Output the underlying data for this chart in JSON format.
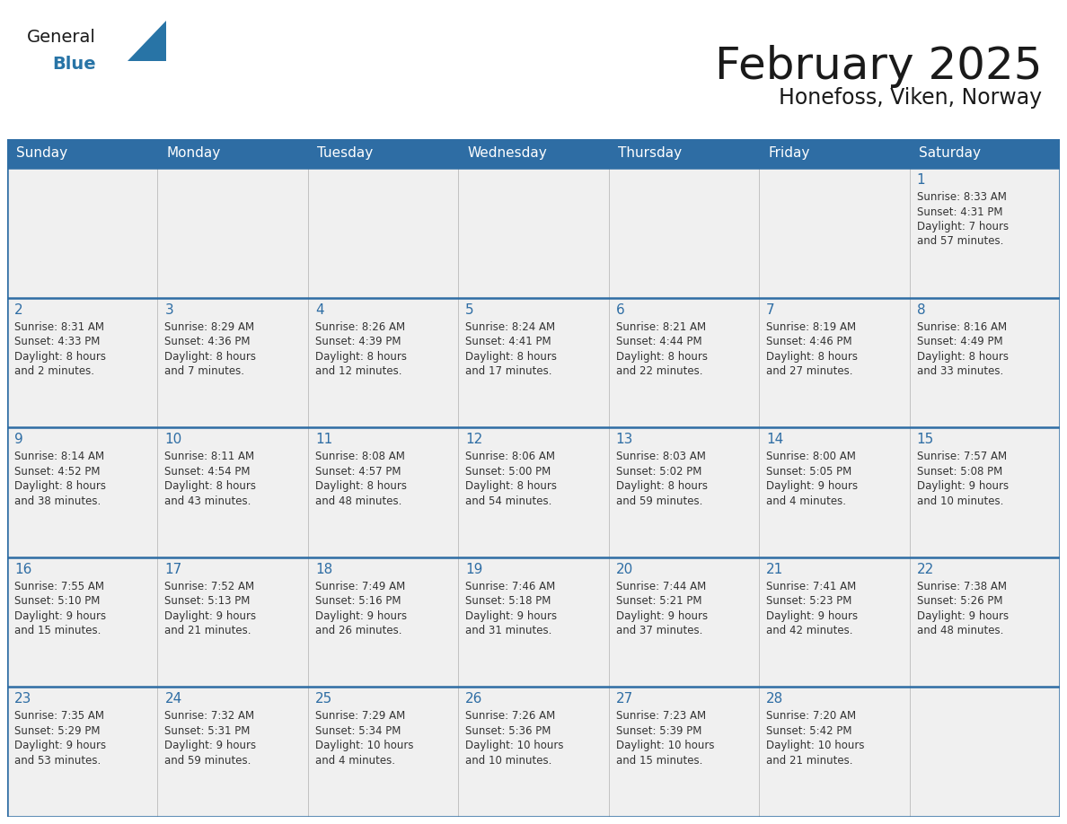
{
  "title": "February 2025",
  "subtitle": "Honefoss, Viken, Norway",
  "header_bg": "#2E6DA4",
  "header_text": "#FFFFFF",
  "cell_bg": "#F0F0F0",
  "day_headers": [
    "Sunday",
    "Monday",
    "Tuesday",
    "Wednesday",
    "Thursday",
    "Friday",
    "Saturday"
  ],
  "title_color": "#1a1a1a",
  "subtitle_color": "#1a1a1a",
  "cell_text_color": "#333333",
  "day_num_color": "#2E6DA4",
  "border_color": "#2E6DA4",
  "grid_color": "#BBBBBB",
  "calendar_data": [
    [
      null,
      null,
      null,
      null,
      null,
      null,
      {
        "day": "1",
        "sunrise": "8:33 AM",
        "sunset": "4:31 PM",
        "daylight": "7 hours",
        "daylight2": "and 57 minutes."
      }
    ],
    [
      {
        "day": "2",
        "sunrise": "8:31 AM",
        "sunset": "4:33 PM",
        "daylight": "8 hours",
        "daylight2": "and 2 minutes."
      },
      {
        "day": "3",
        "sunrise": "8:29 AM",
        "sunset": "4:36 PM",
        "daylight": "8 hours",
        "daylight2": "and 7 minutes."
      },
      {
        "day": "4",
        "sunrise": "8:26 AM",
        "sunset": "4:39 PM",
        "daylight": "8 hours",
        "daylight2": "and 12 minutes."
      },
      {
        "day": "5",
        "sunrise": "8:24 AM",
        "sunset": "4:41 PM",
        "daylight": "8 hours",
        "daylight2": "and 17 minutes."
      },
      {
        "day": "6",
        "sunrise": "8:21 AM",
        "sunset": "4:44 PM",
        "daylight": "8 hours",
        "daylight2": "and 22 minutes."
      },
      {
        "day": "7",
        "sunrise": "8:19 AM",
        "sunset": "4:46 PM",
        "daylight": "8 hours",
        "daylight2": "and 27 minutes."
      },
      {
        "day": "8",
        "sunrise": "8:16 AM",
        "sunset": "4:49 PM",
        "daylight": "8 hours",
        "daylight2": "and 33 minutes."
      }
    ],
    [
      {
        "day": "9",
        "sunrise": "8:14 AM",
        "sunset": "4:52 PM",
        "daylight": "8 hours",
        "daylight2": "and 38 minutes."
      },
      {
        "day": "10",
        "sunrise": "8:11 AM",
        "sunset": "4:54 PM",
        "daylight": "8 hours",
        "daylight2": "and 43 minutes."
      },
      {
        "day": "11",
        "sunrise": "8:08 AM",
        "sunset": "4:57 PM",
        "daylight": "8 hours",
        "daylight2": "and 48 minutes."
      },
      {
        "day": "12",
        "sunrise": "8:06 AM",
        "sunset": "5:00 PM",
        "daylight": "8 hours",
        "daylight2": "and 54 minutes."
      },
      {
        "day": "13",
        "sunrise": "8:03 AM",
        "sunset": "5:02 PM",
        "daylight": "8 hours",
        "daylight2": "and 59 minutes."
      },
      {
        "day": "14",
        "sunrise": "8:00 AM",
        "sunset": "5:05 PM",
        "daylight": "9 hours",
        "daylight2": "and 4 minutes."
      },
      {
        "day": "15",
        "sunrise": "7:57 AM",
        "sunset": "5:08 PM",
        "daylight": "9 hours",
        "daylight2": "and 10 minutes."
      }
    ],
    [
      {
        "day": "16",
        "sunrise": "7:55 AM",
        "sunset": "5:10 PM",
        "daylight": "9 hours",
        "daylight2": "and 15 minutes."
      },
      {
        "day": "17",
        "sunrise": "7:52 AM",
        "sunset": "5:13 PM",
        "daylight": "9 hours",
        "daylight2": "and 21 minutes."
      },
      {
        "day": "18",
        "sunrise": "7:49 AM",
        "sunset": "5:16 PM",
        "daylight": "9 hours",
        "daylight2": "and 26 minutes."
      },
      {
        "day": "19",
        "sunrise": "7:46 AM",
        "sunset": "5:18 PM",
        "daylight": "9 hours",
        "daylight2": "and 31 minutes."
      },
      {
        "day": "20",
        "sunrise": "7:44 AM",
        "sunset": "5:21 PM",
        "daylight": "9 hours",
        "daylight2": "and 37 minutes."
      },
      {
        "day": "21",
        "sunrise": "7:41 AM",
        "sunset": "5:23 PM",
        "daylight": "9 hours",
        "daylight2": "and 42 minutes."
      },
      {
        "day": "22",
        "sunrise": "7:38 AM",
        "sunset": "5:26 PM",
        "daylight": "9 hours",
        "daylight2": "and 48 minutes."
      }
    ],
    [
      {
        "day": "23",
        "sunrise": "7:35 AM",
        "sunset": "5:29 PM",
        "daylight": "9 hours",
        "daylight2": "and 53 minutes."
      },
      {
        "day": "24",
        "sunrise": "7:32 AM",
        "sunset": "5:31 PM",
        "daylight": "9 hours",
        "daylight2": "and 59 minutes."
      },
      {
        "day": "25",
        "sunrise": "7:29 AM",
        "sunset": "5:34 PM",
        "daylight": "10 hours",
        "daylight2": "and 4 minutes."
      },
      {
        "day": "26",
        "sunrise": "7:26 AM",
        "sunset": "5:36 PM",
        "daylight": "10 hours",
        "daylight2": "and 10 minutes."
      },
      {
        "day": "27",
        "sunrise": "7:23 AM",
        "sunset": "5:39 PM",
        "daylight": "10 hours",
        "daylight2": "and 15 minutes."
      },
      {
        "day": "28",
        "sunrise": "7:20 AM",
        "sunset": "5:42 PM",
        "daylight": "10 hours",
        "daylight2": "and 21 minutes."
      },
      null
    ]
  ],
  "logo_general": "General",
  "logo_blue": "Blue",
  "logo_general_color": "#1a1a1a",
  "logo_blue_color": "#2874A6",
  "logo_triangle_color": "#2874A6"
}
